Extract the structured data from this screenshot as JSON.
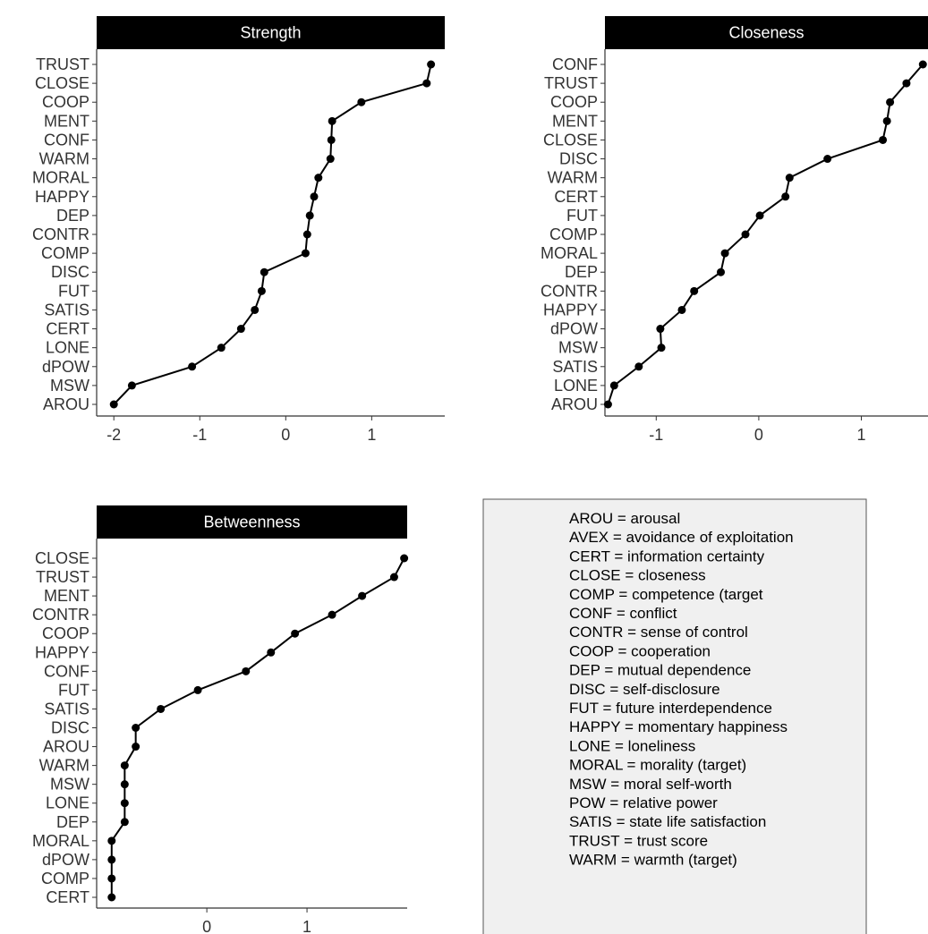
{
  "chart_data": [
    {
      "type": "line",
      "title": "Strength",
      "categories": [
        "TRUST",
        "CLOSE",
        "COOP",
        "MENT",
        "CONF",
        "WARM",
        "MORAL",
        "HAPPY",
        "DEP",
        "CONTR",
        "COMP",
        "DISC",
        "FUT",
        "SATIS",
        "CERT",
        "LONE",
        "dPOW",
        "MSW",
        "AROU"
      ],
      "values": [
        1.69,
        1.64,
        0.88,
        0.54,
        0.53,
        0.52,
        0.38,
        0.33,
        0.28,
        0.25,
        0.23,
        -0.25,
        -0.28,
        -0.36,
        -0.52,
        -0.75,
        -1.09,
        -1.79,
        -2.0
      ],
      "color": "#000000",
      "xlim": [
        -2.2,
        1.85
      ],
      "xticks": [
        -2,
        -1,
        0,
        1
      ]
    },
    {
      "type": "line",
      "title": "Closeness",
      "categories": [
        "CONF",
        "TRUST",
        "COOP",
        "MENT",
        "CLOSE",
        "DISC",
        "WARM",
        "CERT",
        "FUT",
        "COMP",
        "MORAL",
        "DEP",
        "CONTR",
        "HAPPY",
        "dPOW",
        "MSW",
        "SATIS",
        "LONE",
        "AROU"
      ],
      "values": [
        1.6,
        1.44,
        1.28,
        1.25,
        1.21,
        0.67,
        0.3,
        0.26,
        0.01,
        -0.13,
        -0.33,
        -0.37,
        -0.63,
        -0.75,
        -0.96,
        -0.95,
        -1.17,
        -1.41,
        -1.47
      ],
      "color": "#000000",
      "xlim": [
        -1.5,
        1.65
      ],
      "xticks": [
        -1,
        0,
        1
      ]
    },
    {
      "type": "line",
      "title": "Betweenness",
      "categories": [
        "CLOSE",
        "TRUST",
        "MENT",
        "CONTR",
        "COOP",
        "HAPPY",
        "CONF",
        "FUT",
        "SATIS",
        "DISC",
        "AROU",
        "WARM",
        "MSW",
        "LONE",
        "DEP",
        "MORAL",
        "dPOW",
        "COMP",
        "CERT"
      ],
      "values": [
        1.97,
        1.87,
        1.55,
        1.25,
        0.88,
        0.64,
        0.39,
        -0.09,
        -0.46,
        -0.71,
        -0.71,
        -0.82,
        -0.82,
        -0.82,
        -0.82,
        -0.95,
        -0.95,
        -0.95,
        -0.95
      ],
      "color": "#000000",
      "xlim": [
        -1.1,
        2.0
      ],
      "xticks": [
        0,
        1
      ]
    }
  ],
  "notes": [
    "AROU = arousal",
    "AVEX = avoidance of exploitation",
    "CERT = information certainty",
    "CLOSE = closeness",
    "COMP = competence (target",
    "CONF = conflict",
    "CONTR = sense of control",
    "COOP = cooperation",
    "DEP = mutual dependence",
    "DISC = self-disclosure",
    "FUT = future interdependence",
    "HAPPY = momentary happiness",
    "LONE = loneliness",
    "MORAL = morality (target)",
    "MSW = moral self-worth",
    "POW = relative power",
    "SATIS = state life satisfaction",
    "TRUST = trust score",
    "WARM = warmth (target)"
  ]
}
